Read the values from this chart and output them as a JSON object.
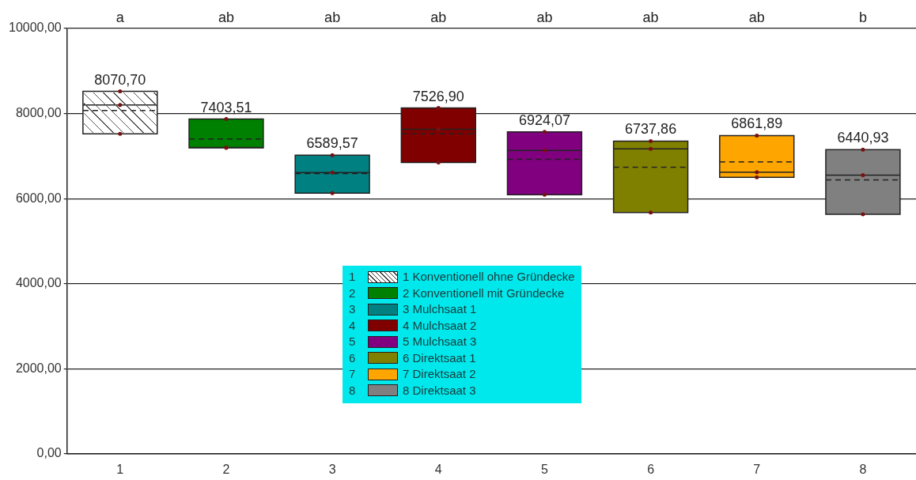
{
  "chart_data": {
    "type": "box",
    "categories": [
      "1",
      "2",
      "3",
      "4",
      "5",
      "6",
      "7",
      "8"
    ],
    "series": [
      {
        "name": "1 Konventionell ohne Gründecke",
        "color": "#ffffff",
        "boxes": [
          {
            "low": 7520,
            "q1": 7520,
            "median": 8200,
            "q3": 8520,
            "high": 8520,
            "mean": 8070.7
          },
          null,
          null,
          null,
          null,
          null,
          null,
          null
        ]
      },
      {
        "name": "2 Konventionell mit Gründecke",
        "color": "#008000",
        "boxes": [
          null,
          {
            "low": 7190,
            "q1": 7190,
            "median": 7200,
            "q3": 7870,
            "high": 7870,
            "mean": 7403.51
          },
          null,
          null,
          null,
          null,
          null,
          null
        ]
      },
      {
        "name": "3 Mulchsaat 1",
        "color": "#008080",
        "boxes": [
          null,
          null,
          {
            "low": 6130,
            "q1": 6130,
            "median": 6610,
            "q3": 7020,
            "high": 7020,
            "mean": 6589.57
          },
          null,
          null,
          null,
          null,
          null
        ]
      },
      {
        "name": "4 Mulchsaat 2",
        "color": "#800000",
        "boxes": [
          null,
          null,
          null,
          {
            "low": 6850,
            "q1": 6850,
            "median": 7630,
            "q3": 8130,
            "high": 8130,
            "mean": 7526.9
          },
          null,
          null,
          null,
          null
        ]
      },
      {
        "name": "5 Mulchsaat 3",
        "color": "#800080",
        "boxes": [
          null,
          null,
          null,
          null,
          {
            "low": 6090,
            "q1": 6090,
            "median": 7130,
            "q3": 7570,
            "high": 7570,
            "mean": 6924.07
          },
          null,
          null,
          null
        ]
      },
      {
        "name": "6 Direktsaat 1",
        "color": "#808000",
        "boxes": [
          null,
          null,
          null,
          null,
          null,
          {
            "low": 5670,
            "q1": 5670,
            "median": 7170,
            "q3": 7350,
            "high": 7350,
            "mean": 6737.86
          },
          null,
          null
        ]
      },
      {
        "name": "7 Direktsaat 2",
        "color": "#ffa500",
        "boxes": [
          null,
          null,
          null,
          null,
          null,
          null,
          {
            "low": 6500,
            "q1": 6500,
            "median": 6620,
            "q3": 7480,
            "high": 7480,
            "mean": 6861.89
          },
          null
        ]
      },
      {
        "name": "8 Direktsaat 3",
        "color": "#808080",
        "boxes": [
          null,
          null,
          null,
          null,
          null,
          null,
          null,
          {
            "low": 5630,
            "q1": 5630,
            "median": 6550,
            "q3": 7150,
            "high": 7150,
            "mean": 6440.93
          }
        ]
      }
    ],
    "ylim": [
      0,
      10000
    ],
    "yticks": [
      {
        "value": 0,
        "label": "0,00"
      },
      {
        "value": 2000,
        "label": "2000,00"
      },
      {
        "value": 4000,
        "label": "4000,00"
      },
      {
        "value": 6000,
        "label": "6000,00"
      },
      {
        "value": 8000,
        "label": "8000,00"
      },
      {
        "value": 10000,
        "label": "10000,00"
      }
    ],
    "grid": "y",
    "legend": "bottom",
    "line_style": "dashed",
    "marker": "circle",
    "annotations": [
      "a",
      "ab",
      "ab",
      "ab",
      "ab",
      "ab",
      "ab",
      "b",
      {
        "text": "8070,70",
        "x": "1",
        "y": 8070.7
      },
      {
        "text": "7403,51",
        "x": "2",
        "y": 7403.51
      },
      {
        "text": "6589,57",
        "x": "3",
        "y": 6589.57
      },
      {
        "text": "7526,90",
        "x": "4",
        "y": 7526.9
      },
      {
        "text": "6924,07",
        "x": "5",
        "y": 6924.07
      },
      {
        "text": "6737,86",
        "x": "6",
        "y": 6737.86
      },
      {
        "text": "6861,89",
        "x": "7",
        "y": 6861.89
      },
      {
        "text": "6440,93",
        "x": "8",
        "y": 6440.93
      }
    ]
  }
}
